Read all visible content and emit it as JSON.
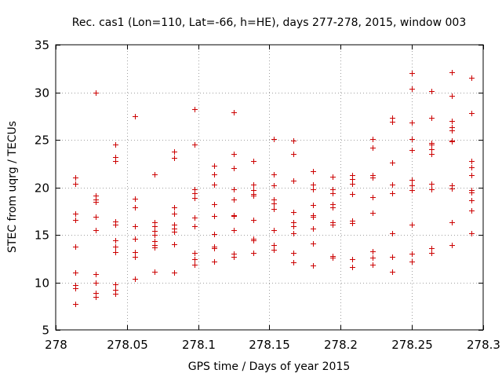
{
  "chart_data": {
    "type": "scatter",
    "title": "Rec. cas1 (Lon=110, Lat=-66, h=HE), days 277-278, 2015, window 003",
    "xlabel": "GPS time / Days of year 2015",
    "ylabel": "STEC from uqrg / TECUs",
    "xlim": [
      278,
      278.3
    ],
    "ylim": [
      5,
      35
    ],
    "grid": true,
    "marker": "plus",
    "color": "#cc0000",
    "x_ticks": [
      "278",
      "278.05",
      "278.1",
      "278.15",
      "278.2",
      "278.25",
      "278.3"
    ],
    "x_tick_values": [
      278,
      278.05,
      278.1,
      278.15,
      278.2,
      278.25,
      278.3
    ],
    "y_ticks": [
      "5",
      "10",
      "15",
      "20",
      "25",
      "30",
      "35"
    ],
    "y_tick_values": [
      5,
      10,
      15,
      20,
      25,
      30,
      35
    ],
    "series": [
      {
        "name": "STEC",
        "points": [
          [
            278.0139,
            21.0
          ],
          [
            278.0139,
            20.4
          ],
          [
            278.0139,
            17.2
          ],
          [
            278.0139,
            16.6
          ],
          [
            278.0139,
            13.8
          ],
          [
            278.0139,
            11.0
          ],
          [
            278.0139,
            9.7
          ],
          [
            278.0139,
            9.4
          ],
          [
            278.0139,
            7.7
          ],
          [
            278.0278,
            30.0
          ],
          [
            278.0278,
            19.1
          ],
          [
            278.0278,
            18.7
          ],
          [
            278.0278,
            18.5
          ],
          [
            278.0278,
            16.9
          ],
          [
            278.0278,
            15.5
          ],
          [
            278.0278,
            10.9
          ],
          [
            278.0278,
            10.0
          ],
          [
            278.0278,
            8.9
          ],
          [
            278.0278,
            8.5
          ],
          [
            278.0417,
            24.5
          ],
          [
            278.0417,
            23.2
          ],
          [
            278.0417,
            22.8
          ],
          [
            278.0417,
            16.4
          ],
          [
            278.0417,
            16.1
          ],
          [
            278.0417,
            14.4
          ],
          [
            278.0417,
            13.8
          ],
          [
            278.0417,
            13.2
          ],
          [
            278.0417,
            9.8
          ],
          [
            278.0417,
            9.2
          ],
          [
            278.0417,
            8.8
          ],
          [
            278.0556,
            27.5
          ],
          [
            278.0556,
            18.8
          ],
          [
            278.0556,
            17.9
          ],
          [
            278.0556,
            15.9
          ],
          [
            278.0556,
            14.6
          ],
          [
            278.0556,
            13.2
          ],
          [
            278.0556,
            12.7
          ],
          [
            278.0556,
            10.4
          ],
          [
            278.0694,
            21.4
          ],
          [
            278.0694,
            16.3
          ],
          [
            278.0694,
            15.9
          ],
          [
            278.0694,
            15.4
          ],
          [
            278.0694,
            15.0
          ],
          [
            278.0694,
            14.3
          ],
          [
            278.0694,
            13.9
          ],
          [
            278.0694,
            13.7
          ],
          [
            278.0694,
            11.1
          ],
          [
            278.0833,
            23.8
          ],
          [
            278.0833,
            23.1
          ],
          [
            278.0833,
            17.9
          ],
          [
            278.0833,
            17.2
          ],
          [
            278.0833,
            16.1
          ],
          [
            278.0833,
            15.7
          ],
          [
            278.0833,
            15.3
          ],
          [
            278.0833,
            14.0
          ],
          [
            278.0833,
            11.0
          ],
          [
            278.0972,
            28.2
          ],
          [
            278.0972,
            24.5
          ],
          [
            278.0972,
            19.8
          ],
          [
            278.0972,
            19.4
          ],
          [
            278.0972,
            18.9
          ],
          [
            278.0972,
            16.8
          ],
          [
            278.0972,
            15.9
          ],
          [
            278.0972,
            13.1
          ],
          [
            278.0972,
            12.4
          ],
          [
            278.0972,
            11.9
          ],
          [
            278.1111,
            22.3
          ],
          [
            278.1111,
            21.4
          ],
          [
            278.1111,
            20.3
          ],
          [
            278.1111,
            18.2
          ],
          [
            278.1111,
            17.0
          ],
          [
            278.1111,
            15.1
          ],
          [
            278.1111,
            13.8
          ],
          [
            278.1111,
            13.6
          ],
          [
            278.1111,
            12.2
          ],
          [
            278.125,
            27.9
          ],
          [
            278.125,
            23.5
          ],
          [
            278.125,
            22.0
          ],
          [
            278.125,
            19.8
          ],
          [
            278.125,
            18.7
          ],
          [
            278.125,
            17.1
          ],
          [
            278.125,
            17.0
          ],
          [
            278.125,
            15.5
          ],
          [
            278.125,
            13.0
          ],
          [
            278.125,
            12.7
          ],
          [
            278.1389,
            22.8
          ],
          [
            278.1389,
            20.3
          ],
          [
            278.1389,
            19.7
          ],
          [
            278.1389,
            19.3
          ],
          [
            278.1389,
            19.1
          ],
          [
            278.1389,
            16.6
          ],
          [
            278.1389,
            14.6
          ],
          [
            278.1389,
            14.4
          ],
          [
            278.1389,
            13.1
          ],
          [
            278.1528,
            25.1
          ],
          [
            278.1528,
            21.4
          ],
          [
            278.1528,
            20.2
          ],
          [
            278.1528,
            18.7
          ],
          [
            278.1528,
            18.3
          ],
          [
            278.1528,
            17.7
          ],
          [
            278.1528,
            15.5
          ],
          [
            278.1528,
            13.9
          ],
          [
            278.1528,
            13.4
          ],
          [
            278.1667,
            24.9
          ],
          [
            278.1667,
            23.5
          ],
          [
            278.1667,
            20.7
          ],
          [
            278.1667,
            17.4
          ],
          [
            278.1667,
            16.3
          ],
          [
            278.1667,
            15.9
          ],
          [
            278.1667,
            15.2
          ],
          [
            278.1667,
            13.1
          ],
          [
            278.1667,
            12.1
          ],
          [
            278.1806,
            21.7
          ],
          [
            278.1806,
            20.3
          ],
          [
            278.1806,
            19.8
          ],
          [
            278.1806,
            18.1
          ],
          [
            278.1806,
            17.1
          ],
          [
            278.1806,
            16.9
          ],
          [
            278.1806,
            15.7
          ],
          [
            278.1806,
            14.1
          ],
          [
            278.1806,
            11.8
          ],
          [
            278.1944,
            21.1
          ],
          [
            278.1944,
            19.8
          ],
          [
            278.1944,
            19.4
          ],
          [
            278.1944,
            18.2
          ],
          [
            278.1944,
            17.9
          ],
          [
            278.1944,
            16.3
          ],
          [
            278.1944,
            16.1
          ],
          [
            278.1944,
            12.8
          ],
          [
            278.1944,
            12.6
          ],
          [
            278.2083,
            21.3
          ],
          [
            278.2083,
            20.9
          ],
          [
            278.2083,
            20.4
          ],
          [
            278.2083,
            19.3
          ],
          [
            278.2083,
            16.5
          ],
          [
            278.2083,
            16.2
          ],
          [
            278.2083,
            12.4
          ],
          [
            278.2083,
            11.6
          ],
          [
            278.2222,
            25.1
          ],
          [
            278.2222,
            24.2
          ],
          [
            278.2222,
            21.3
          ],
          [
            278.2222,
            21.0
          ],
          [
            278.2222,
            19.0
          ],
          [
            278.2222,
            17.3
          ],
          [
            278.2222,
            13.3
          ],
          [
            278.2222,
            12.6
          ],
          [
            278.2222,
            11.9
          ],
          [
            278.2361,
            27.3
          ],
          [
            278.2361,
            26.9
          ],
          [
            278.2361,
            22.6
          ],
          [
            278.2361,
            20.3
          ],
          [
            278.2361,
            19.4
          ],
          [
            278.2361,
            15.2
          ],
          [
            278.2361,
            12.7
          ],
          [
            278.2361,
            11.1
          ],
          [
            278.25,
            32.0
          ],
          [
            278.25,
            30.4
          ],
          [
            278.25,
            26.8
          ],
          [
            278.25,
            25.1
          ],
          [
            278.25,
            23.9
          ],
          [
            278.25,
            20.8
          ],
          [
            278.25,
            20.2
          ],
          [
            278.25,
            19.7
          ],
          [
            278.25,
            16.1
          ],
          [
            278.25,
            13.0
          ],
          [
            278.25,
            12.2
          ],
          [
            278.2639,
            30.1
          ],
          [
            278.2639,
            27.3
          ],
          [
            278.2639,
            24.7
          ],
          [
            278.2639,
            24.5
          ],
          [
            278.2639,
            24.0
          ],
          [
            278.2639,
            23.5
          ],
          [
            278.2639,
            20.4
          ],
          [
            278.2639,
            19.8
          ],
          [
            278.2639,
            13.6
          ],
          [
            278.2639,
            13.1
          ],
          [
            278.2778,
            32.1
          ],
          [
            278.2778,
            29.6
          ],
          [
            278.2778,
            27.0
          ],
          [
            278.2778,
            26.3
          ],
          [
            278.2778,
            26.0
          ],
          [
            278.2778,
            24.9
          ],
          [
            278.2778,
            24.8
          ],
          [
            278.2778,
            20.2
          ],
          [
            278.2778,
            19.9
          ],
          [
            278.2778,
            16.3
          ],
          [
            278.2778,
            13.9
          ],
          [
            278.2917,
            31.5
          ],
          [
            278.2917,
            27.8
          ],
          [
            278.2917,
            22.8
          ],
          [
            278.2917,
            22.1
          ],
          [
            278.2917,
            21.3
          ],
          [
            278.2917,
            19.7
          ],
          [
            278.2917,
            19.5
          ],
          [
            278.2917,
            18.6
          ],
          [
            278.2917,
            17.6
          ],
          [
            278.2917,
            15.2
          ]
        ]
      }
    ]
  }
}
